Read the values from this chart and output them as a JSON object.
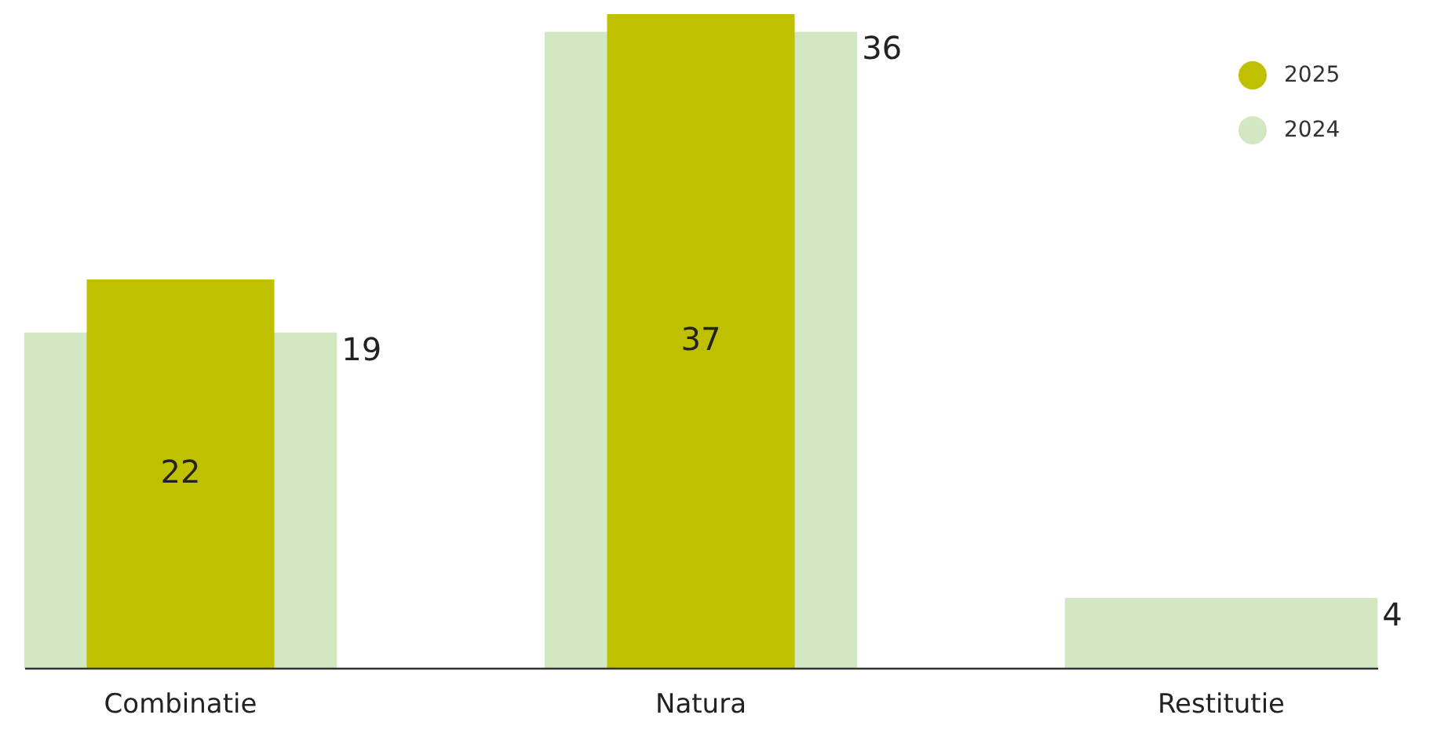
{
  "chart_data": {
    "type": "bar",
    "categories": [
      "Combinatie",
      "Natura",
      "Restitutie"
    ],
    "series": [
      {
        "name": "2025",
        "color": "#bfc000",
        "values": [
          22,
          37,
          null
        ]
      },
      {
        "name": "2024",
        "color": "#d3e8c2",
        "values": [
          19,
          36,
          4
        ]
      }
    ],
    "data_labels": true,
    "legend": "top right",
    "relative": false
  }
}
